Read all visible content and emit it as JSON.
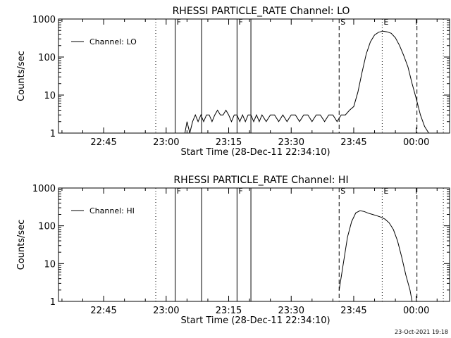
{
  "chart_data": [
    {
      "type": "line",
      "title": "RHESSI PARTICLE_RATE Channel: LO",
      "xlabel": "Start Time (28-Dec-11 22:34:10)",
      "ylabel": "Counts/sec",
      "y_scale": "log",
      "ylim": [
        1,
        1000
      ],
      "xlim": [
        "22:34:10",
        "00:08:00"
      ],
      "x_ticks": [
        "22:45",
        "23:00",
        "23:15",
        "23:30",
        "23:45",
        "00:00"
      ],
      "y_ticks": [
        "1",
        "10",
        "100",
        "1000"
      ],
      "legend": {
        "position": "top-left",
        "entries": [
          "Channel: LO"
        ]
      },
      "series": [
        {
          "name": "Channel: LO",
          "x": [
            "23:04:00",
            "23:04:30",
            "23:05:00",
            "23:05:40",
            "23:06:20",
            "23:07:00",
            "23:07:40",
            "23:08:20",
            "23:09:00",
            "23:09:40",
            "23:10:20",
            "23:11:00",
            "23:11:40",
            "23:12:20",
            "23:13:00",
            "23:13:40",
            "23:14:20",
            "23:15:00",
            "23:15:40",
            "23:16:20",
            "23:17:00",
            "23:17:40",
            "23:18:20",
            "23:19:00",
            "23:19:40",
            "23:20:20",
            "23:21:00",
            "23:21:40",
            "23:22:20",
            "23:23:00",
            "23:24:00",
            "23:25:00",
            "23:26:00",
            "23:27:00",
            "23:28:00",
            "23:29:00",
            "23:30:00",
            "23:31:00",
            "23:32:00",
            "23:33:00",
            "23:34:00",
            "23:35:00",
            "23:36:00",
            "23:37:00",
            "23:38:00",
            "23:39:00",
            "23:40:00",
            "23:41:00",
            "23:42:00",
            "23:43:00",
            "23:44:00",
            "23:45:00",
            "23:46:00",
            "23:47:00",
            "23:48:00",
            "23:49:00",
            "23:50:00",
            "23:51:00",
            "23:52:00",
            "23:53:00",
            "23:54:00",
            "23:55:00",
            "23:56:00",
            "23:57:00",
            "23:58:00",
            "23:59:00",
            "00:00:00",
            "00:01:00",
            "00:02:00",
            "00:03:00",
            "00:04:00"
          ],
          "values": [
            1,
            1,
            2,
            1,
            2,
            3,
            2,
            3,
            2,
            3,
            3,
            2,
            3,
            4,
            3,
            3,
            4,
            3,
            2,
            3,
            3,
            2,
            3,
            2,
            3,
            3,
            2,
            3,
            2,
            3,
            2,
            3,
            3,
            2,
            3,
            2,
            3,
            3,
            2,
            3,
            3,
            2,
            3,
            3,
            2,
            3,
            3,
            2,
            3,
            3,
            4,
            5,
            12,
            40,
            120,
            250,
            380,
            450,
            480,
            460,
            420,
            320,
            200,
            110,
            55,
            20,
            8,
            3,
            1.5,
            1,
            1
          ]
        }
      ],
      "markers": [
        {
          "time": "22:57:30",
          "style": "dotted"
        },
        {
          "time": "23:02:10",
          "style": "solid",
          "label": "F"
        },
        {
          "time": "23:08:30",
          "style": "solid"
        },
        {
          "time": "23:17:00",
          "style": "solid",
          "label": "F"
        },
        {
          "time": "23:20:20",
          "style": "solid"
        },
        {
          "time": "23:41:30",
          "style": "dashed",
          "label": "S"
        },
        {
          "time": "23:51:50",
          "style": "dotted",
          "label": "E"
        },
        {
          "time": "00:00:10",
          "style": "dashed"
        },
        {
          "time": "00:06:30",
          "style": "dotted"
        }
      ]
    },
    {
      "type": "line",
      "title": "RHESSI PARTICLE_RATE Channel: HI",
      "xlabel": "Start Time (28-Dec-11 22:34:10)",
      "ylabel": "Counts/sec",
      "y_scale": "log",
      "ylim": [
        1,
        1000
      ],
      "xlim": [
        "22:34:10",
        "00:08:00"
      ],
      "x_ticks": [
        "22:45",
        "23:00",
        "23:15",
        "23:30",
        "23:45",
        "00:00"
      ],
      "y_ticks": [
        "1",
        "10",
        "100",
        "1000"
      ],
      "legend": {
        "position": "top-left",
        "entries": [
          "Channel: HI"
        ]
      },
      "series": [
        {
          "name": "Channel: HI",
          "x": [
            "23:41:30",
            "23:42:30",
            "23:43:30",
            "23:44:30",
            "23:45:30",
            "23:46:30",
            "23:47:30",
            "23:48:30",
            "23:49:30",
            "23:50:30",
            "23:51:30",
            "23:52:30",
            "23:53:30",
            "23:54:30",
            "23:55:30",
            "23:56:30",
            "23:57:30",
            "23:58:30",
            "23:59:00"
          ],
          "values": [
            2,
            10,
            50,
            130,
            220,
            250,
            240,
            215,
            200,
            185,
            170,
            150,
            120,
            80,
            40,
            15,
            5,
            2,
            1
          ]
        }
      ],
      "markers": [
        {
          "time": "22:57:30",
          "style": "dotted"
        },
        {
          "time": "23:02:10",
          "style": "solid",
          "label": "F"
        },
        {
          "time": "23:08:30",
          "style": "solid"
        },
        {
          "time": "23:17:00",
          "style": "solid",
          "label": "F"
        },
        {
          "time": "23:20:20",
          "style": "solid"
        },
        {
          "time": "23:41:30",
          "style": "dashed",
          "label": "S"
        },
        {
          "time": "23:51:50",
          "style": "dotted",
          "label": "E"
        },
        {
          "time": "00:00:10",
          "style": "dashed"
        },
        {
          "time": "00:06:30",
          "style": "dotted"
        }
      ]
    }
  ],
  "footer": {
    "timestamp": "23-Oct-2021 19:18"
  }
}
